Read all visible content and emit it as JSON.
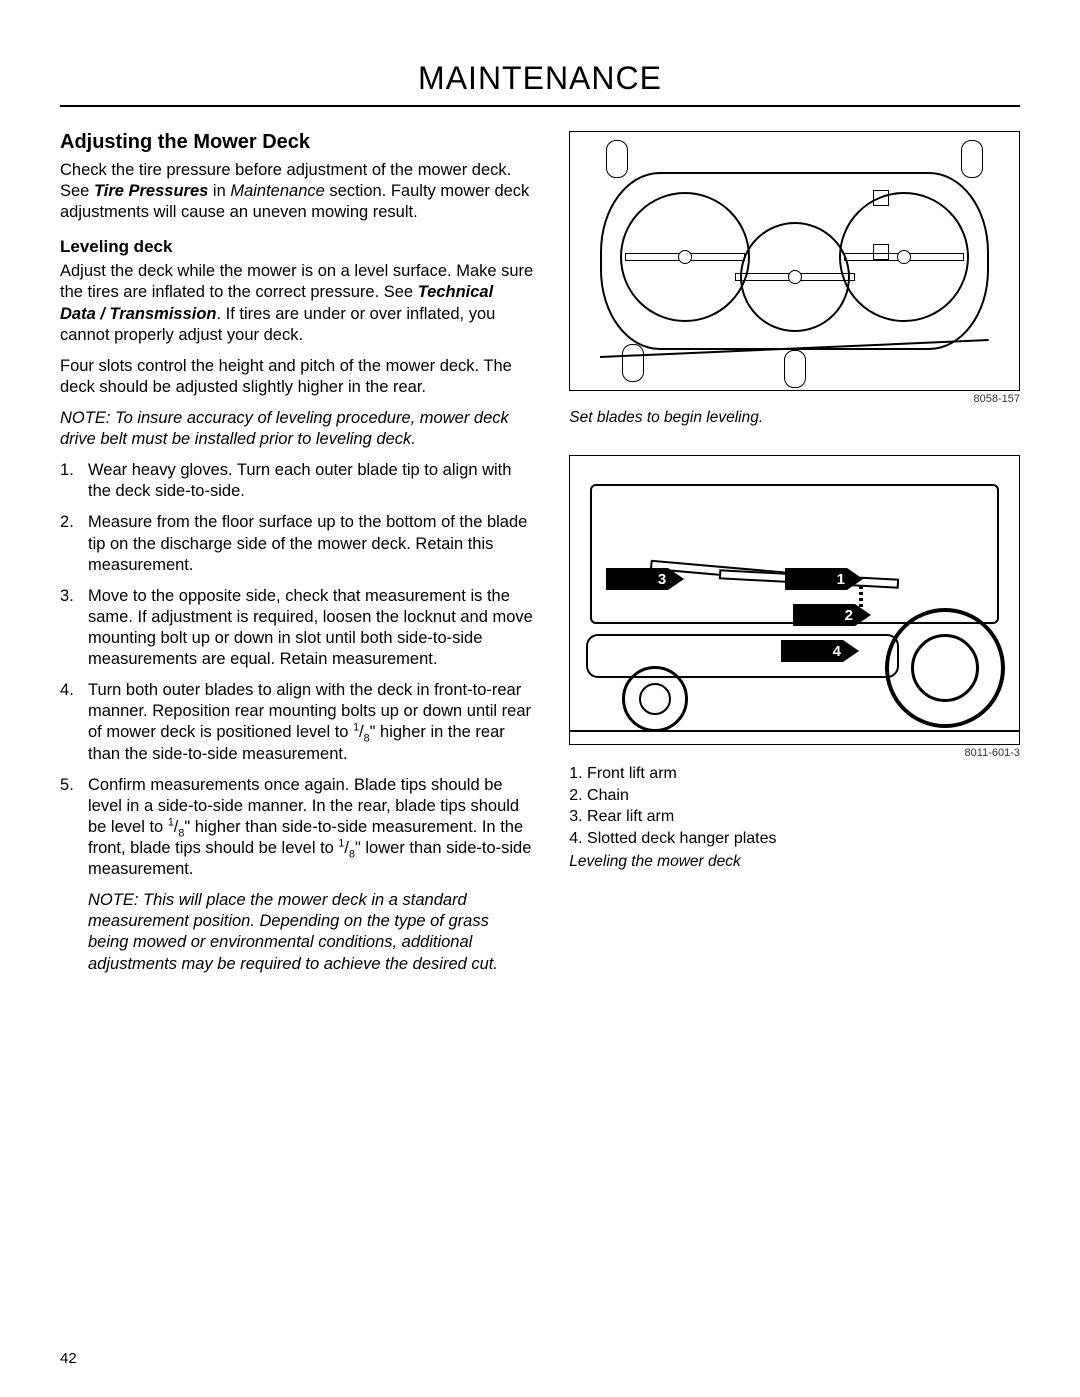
{
  "page": {
    "header": "MAINTENANCE",
    "number": "42"
  },
  "section": {
    "title": "Adjusting the Mower Deck",
    "intro_parts": {
      "a": "Check the tire pressure before adjustment of the mower deck. See ",
      "b": "Tire Pressures",
      "c": " in ",
      "d": "Maintenance",
      "e": " section. Faulty mower deck adjustments will cause an uneven mowing result."
    },
    "sub_title": "Leveling deck",
    "p1_parts": {
      "a": "Adjust the deck while the mower is on a level surface. Make sure the tires are inflated to the correct pressure. See ",
      "b": "Technical Data / Transmission",
      "c": ". If tires are under or over inflated, you cannot properly adjust your deck."
    },
    "p2": "Four slots control the height and pitch of the mower deck. The deck should be adjusted slightly higher in the rear.",
    "note1": "NOTE: To insure accuracy of leveling procedure, mower deck drive belt must be installed prior to leveling deck.",
    "steps": {
      "s1": "Wear heavy gloves. Turn each outer blade tip to align with the deck side-to-side.",
      "s2": "Measure from the floor surface up to the bottom of the blade tip on the discharge side of the mower deck. Retain this measurement.",
      "s3": "Move to the opposite side, check that measurement is the same. If adjustment is required, loosen the locknut and move mounting bolt up or down in slot until both side-to-side measurements are equal. Retain measurement.",
      "s4_a": "Turn both outer blades to align with the deck in front-to-rear manner. Reposition rear mounting bolts up or down until rear of mower deck is positioned level to ",
      "s4_b": "\" higher in the rear than the side-to-side measurement.",
      "s5_a": "Confirm measurements once again. Blade tips should be level in a side-to-side manner. In the rear, blade tips should be level to ",
      "s5_b": "\" higher than side-to-side measurement. In the front, blade tips should be level to ",
      "s5_c": "\" lower than side-to-side measurement."
    },
    "fraction": {
      "num": "1",
      "den": "8"
    },
    "note2": "NOTE: This will place the mower deck in a standard measurement position. Depending on the type of grass being mowed or environmental conditions, additional adjustments may be required to achieve the desired cut."
  },
  "figure1": {
    "ref": "8058-157",
    "caption": "Set blades to begin leveling."
  },
  "figure2": {
    "ref": "8011-601-3",
    "arrows": {
      "n1": "1",
      "n2": "2",
      "n3": "3",
      "n4": "4"
    },
    "legend": {
      "l1": "1. Front lift arm",
      "l2": "2. Chain",
      "l3": "3. Rear lift arm",
      "l4": "4. Slotted deck hanger plates"
    },
    "caption": "Leveling the mower deck"
  }
}
